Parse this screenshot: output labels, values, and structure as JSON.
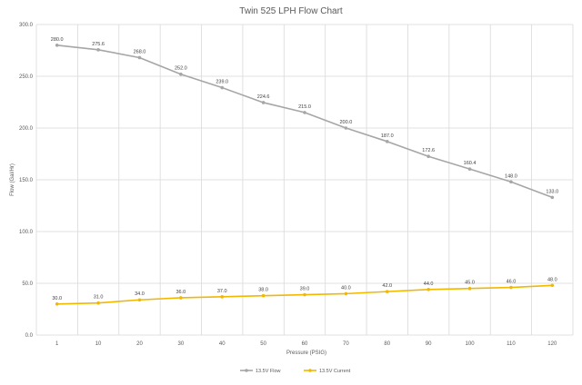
{
  "chart_data": {
    "type": "line",
    "title": "Twin 525 LPH Flow Chart",
    "xlabel": "Pressure (PSIG)",
    "ylabel": "Flow (Gal/Hr)",
    "categories": [
      "1",
      "10",
      "20",
      "30",
      "40",
      "50",
      "60",
      "70",
      "80",
      "90",
      "100",
      "110",
      "120"
    ],
    "ylim": [
      0,
      300
    ],
    "yticks": [
      "0.0",
      "50.0",
      "100.0",
      "150.0",
      "200.0",
      "250.0",
      "300.0"
    ],
    "grid": true,
    "legend_position": "bottom",
    "series": [
      {
        "name": "13.5V Flow",
        "color": "#a6a6a6",
        "values": [
          280.0,
          275.6,
          268.0,
          252.0,
          239.0,
          224.6,
          215.0,
          200.0,
          187.0,
          172.6,
          160.4,
          148.0,
          133.0
        ],
        "labels": [
          "280.0",
          "275.6",
          "268.0",
          "252.0",
          "239.0",
          "224.6",
          "215.0",
          "200.0",
          "187.0",
          "172.6",
          "160.4",
          "148.0",
          "133.0"
        ]
      },
      {
        "name": "13.5V Current",
        "color": "#f2b800",
        "values": [
          30.0,
          31.0,
          34.0,
          36.0,
          37.0,
          38.0,
          39.0,
          40.0,
          42.0,
          44.0,
          45.0,
          46.0,
          48.0
        ],
        "labels": [
          "30.0",
          "31.0",
          "34.0",
          "36.0",
          "37.0",
          "38.0",
          "39.0",
          "40.0",
          "42.0",
          "44.0",
          "45.0",
          "46.0",
          "48.0"
        ]
      }
    ]
  }
}
